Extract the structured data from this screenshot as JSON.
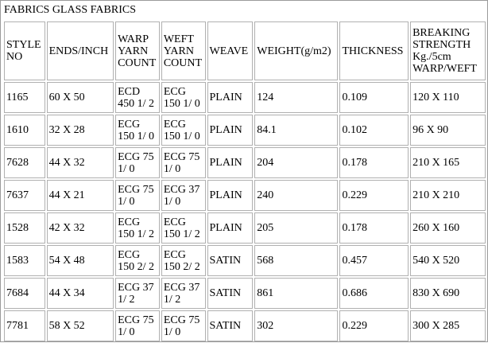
{
  "title": "FABRICS GLASS FABRICS",
  "table": {
    "headers": [
      [
        "STYLE",
        "NO"
      ],
      [
        "ENDS/INCH"
      ],
      [
        "WARP",
        "YARN",
        "COUNT"
      ],
      [
        "WEFT",
        "YARN",
        "COUNT"
      ],
      [
        "WEAVE"
      ],
      [
        "WEIGHT(g/m2)"
      ],
      [
        "THICKNESS"
      ],
      [
        "BREAKING",
        "STRENGTH",
        "Kg./5cm",
        "WARP/WEFT"
      ]
    ],
    "rows": [
      {
        "style": "1165",
        "ends": "60 X 50",
        "warp": [
          "ECD",
          "450 1/ 2"
        ],
        "weft": [
          "ECG",
          "150 1/ 0"
        ],
        "weave": "PLAIN",
        "weight": "124",
        "thickness": "0.109",
        "strength": "120 X 110"
      },
      {
        "style": "1610",
        "ends": "32 X 28",
        "warp": [
          "ECG",
          "150 1/ 0"
        ],
        "weft": [
          "ECG",
          "150 1/ 0"
        ],
        "weave": "PLAIN",
        "weight": "84.1",
        "thickness": "0.102",
        "strength": "96 X 90"
      },
      {
        "style": "7628",
        "ends": "44 X 32",
        "warp": [
          "ECG 75",
          "1/ 0"
        ],
        "weft": [
          "ECG 75",
          "1/ 0"
        ],
        "weave": "PLAIN",
        "weight": "204",
        "thickness": "0.178",
        "strength": "210 X 165"
      },
      {
        "style": "7637",
        "ends": "44 X 21",
        "warp": [
          "ECG 75",
          "1/ 0"
        ],
        "weft": [
          "ECG 37",
          "1/ 0"
        ],
        "weave": "PLAIN",
        "weight": "240",
        "thickness": "0.229",
        "strength": "210 X 210"
      },
      {
        "style": "1528",
        "ends": "42 X 32",
        "warp": [
          "ECG",
          "150 1/ 2"
        ],
        "weft": [
          "ECG",
          "150 1/ 2"
        ],
        "weave": "PLAIN",
        "weight": "205",
        "thickness": "0.178",
        "strength": "260 X 160"
      },
      {
        "style": "1583",
        "ends": "54 X 48",
        "warp": [
          "ECG",
          "150 2/ 2"
        ],
        "weft": [
          "ECG",
          "150 2/ 2"
        ],
        "weave": "SATIN",
        "weight": "568",
        "thickness": "0.457",
        "strength": "540 X 520"
      },
      {
        "style": "7684",
        "ends": "44 X 34",
        "warp": [
          "ECG 37",
          "1/ 2"
        ],
        "weft": [
          "ECG 37",
          "1/ 2"
        ],
        "weave": "SATIN",
        "weight": "861",
        "thickness": "0.686",
        "strength": "830 X 690"
      },
      {
        "style": "7781",
        "ends": "58 X 52",
        "warp": [
          "ECG 75",
          "1/ 0"
        ],
        "weft": [
          "ECG 75",
          "1/ 0"
        ],
        "weave": "SATIN",
        "weight": "302",
        "thickness": "0.229",
        "strength": "300 X 285"
      }
    ]
  }
}
